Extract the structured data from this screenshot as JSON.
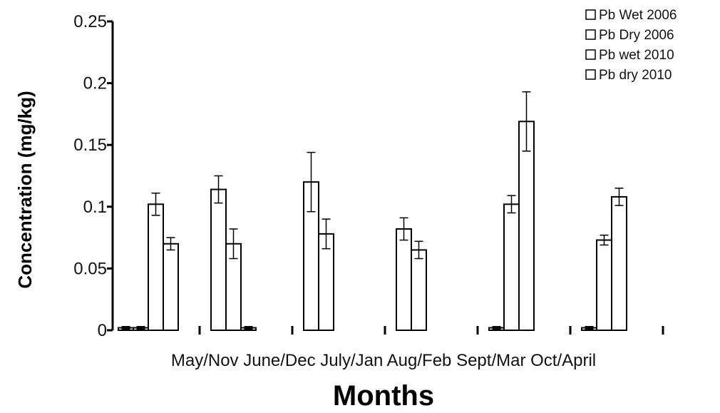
{
  "chart_data": {
    "type": "bar",
    "title": "",
    "xlabel": "Months",
    "ylabel": "Concentration (mg/kg)",
    "ylim": [
      0,
      0.25
    ],
    "yticks": [
      "0",
      "0.05",
      "0.1",
      "0.15",
      "0.2",
      "0.25"
    ],
    "categories": [
      "May/Nov",
      "June/Dec",
      "July/Jan",
      "Aug/Feb",
      "Sept/Mar",
      "Oct/April"
    ],
    "legend_position": "top-right",
    "grid": false,
    "bar_fill": "#ffffff",
    "bar_stroke": "#000000",
    "series": [
      {
        "name": "Pb Wet 2006",
        "values": [
          0.002,
          0.114,
          0.12,
          0.082,
          0.002,
          0.002
        ],
        "errors": [
          0.001,
          0.011,
          0.024,
          0.009,
          0.001,
          0.001
        ]
      },
      {
        "name": "Pb Dry 2006",
        "values": [
          0.002,
          0.07,
          0.078,
          0.065,
          0.102,
          0.073
        ],
        "errors": [
          0.001,
          0.012,
          0.012,
          0.007,
          0.007,
          0.004
        ]
      },
      {
        "name": "Pb wet 2010",
        "values": [
          0.102,
          0.002,
          0,
          0,
          0.169,
          0.108
        ],
        "errors": [
          0.009,
          0.001,
          0,
          0,
          0.024,
          0.007
        ]
      },
      {
        "name": "Pb dry 2010",
        "values": [
          0.07,
          0,
          0,
          0,
          0,
          0
        ],
        "errors": [
          0.005,
          0,
          0,
          0,
          0,
          0
        ]
      }
    ]
  }
}
